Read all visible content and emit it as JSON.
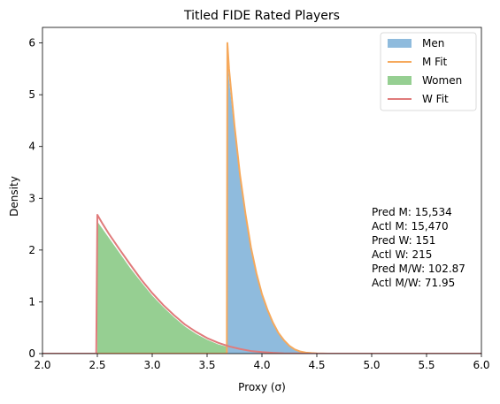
{
  "chart_data": {
    "type": "area",
    "title": "Titled FIDE Rated Players",
    "xlabel": "Proxy (σ)",
    "ylabel": "Density",
    "xlim": [
      2.0,
      6.0
    ],
    "ylim": [
      0,
      6.3
    ],
    "xticks": [
      "2.0",
      "2.5",
      "3.0",
      "3.5",
      "4.0",
      "4.5",
      "5.0",
      "5.5",
      "6.0"
    ],
    "yticks": [
      "0",
      "1",
      "2",
      "3",
      "4",
      "5",
      "6"
    ],
    "legend_position": "top-right",
    "legend": [
      {
        "label": "Men",
        "kind": "patch",
        "color": "#8fbbdd"
      },
      {
        "label": "M Fit",
        "kind": "line",
        "color": "#f6a95c"
      },
      {
        "label": "Women",
        "kind": "patch",
        "color": "#96cf92"
      },
      {
        "label": "W Fit",
        "kind": "line",
        "color": "#e07b7b"
      }
    ],
    "series": [
      {
        "name": "Men",
        "style": "filled-histogram",
        "color": "#8fbbdd",
        "x": [
          3.685,
          3.7,
          3.75,
          3.8,
          3.85,
          3.9,
          3.95,
          4.0,
          4.05,
          4.1,
          4.15,
          4.2,
          4.25,
          4.3,
          4.35,
          4.4,
          4.45,
          4.5
        ],
        "y": [
          5.8,
          5.3,
          4.3,
          3.4,
          2.7,
          2.05,
          1.55,
          1.15,
          0.85,
          0.6,
          0.4,
          0.26,
          0.15,
          0.08,
          0.04,
          0.02,
          0.01,
          0.0
        ]
      },
      {
        "name": "M Fit",
        "style": "line",
        "color": "#f6a95c",
        "x": [
          2.0,
          3.68,
          3.685,
          3.7,
          3.75,
          3.8,
          3.85,
          3.9,
          3.95,
          4.0,
          4.05,
          4.1,
          4.15,
          4.2,
          4.25,
          4.3,
          4.35,
          4.4,
          4.45,
          4.5,
          4.6,
          6.0
        ],
        "y": [
          0.0,
          0.0,
          6.0,
          5.5,
          4.4,
          3.45,
          2.7,
          2.05,
          1.55,
          1.15,
          0.85,
          0.6,
          0.4,
          0.26,
          0.15,
          0.08,
          0.04,
          0.02,
          0.01,
          0.005,
          0.0,
          0.0
        ]
      },
      {
        "name": "Women",
        "style": "filled-histogram",
        "color": "#96cf92",
        "x": [
          2.5,
          2.55,
          2.6,
          2.7,
          2.8,
          2.9,
          3.0,
          3.1,
          3.2,
          3.3,
          3.4,
          3.5,
          3.6,
          3.7,
          3.8,
          3.9,
          4.0,
          4.1,
          4.2
        ],
        "y": [
          2.55,
          2.4,
          2.25,
          1.95,
          1.65,
          1.38,
          1.12,
          0.9,
          0.7,
          0.52,
          0.38,
          0.27,
          0.18,
          0.12,
          0.07,
          0.04,
          0.02,
          0.01,
          0.0
        ]
      },
      {
        "name": "W Fit",
        "style": "line",
        "color": "#e07b7b",
        "x": [
          2.0,
          2.49,
          2.5,
          2.55,
          2.6,
          2.7,
          2.8,
          2.9,
          3.0,
          3.1,
          3.2,
          3.3,
          3.4,
          3.5,
          3.6,
          3.7,
          3.8,
          3.9,
          4.0,
          4.1,
          4.2,
          4.4,
          6.0
        ],
        "y": [
          0.0,
          0.0,
          2.68,
          2.5,
          2.33,
          2.02,
          1.72,
          1.43,
          1.17,
          0.94,
          0.74,
          0.56,
          0.42,
          0.3,
          0.21,
          0.14,
          0.09,
          0.05,
          0.03,
          0.015,
          0.005,
          0.0,
          0.0
        ]
      }
    ],
    "annotation_lines": [
      "Pred M: 15,534",
      "Actl M: 15,470",
      "Pred W: 151",
      "Actl W: 215",
      "Pred M/W: 102.87",
      "Actl M/W: 71.95"
    ]
  }
}
